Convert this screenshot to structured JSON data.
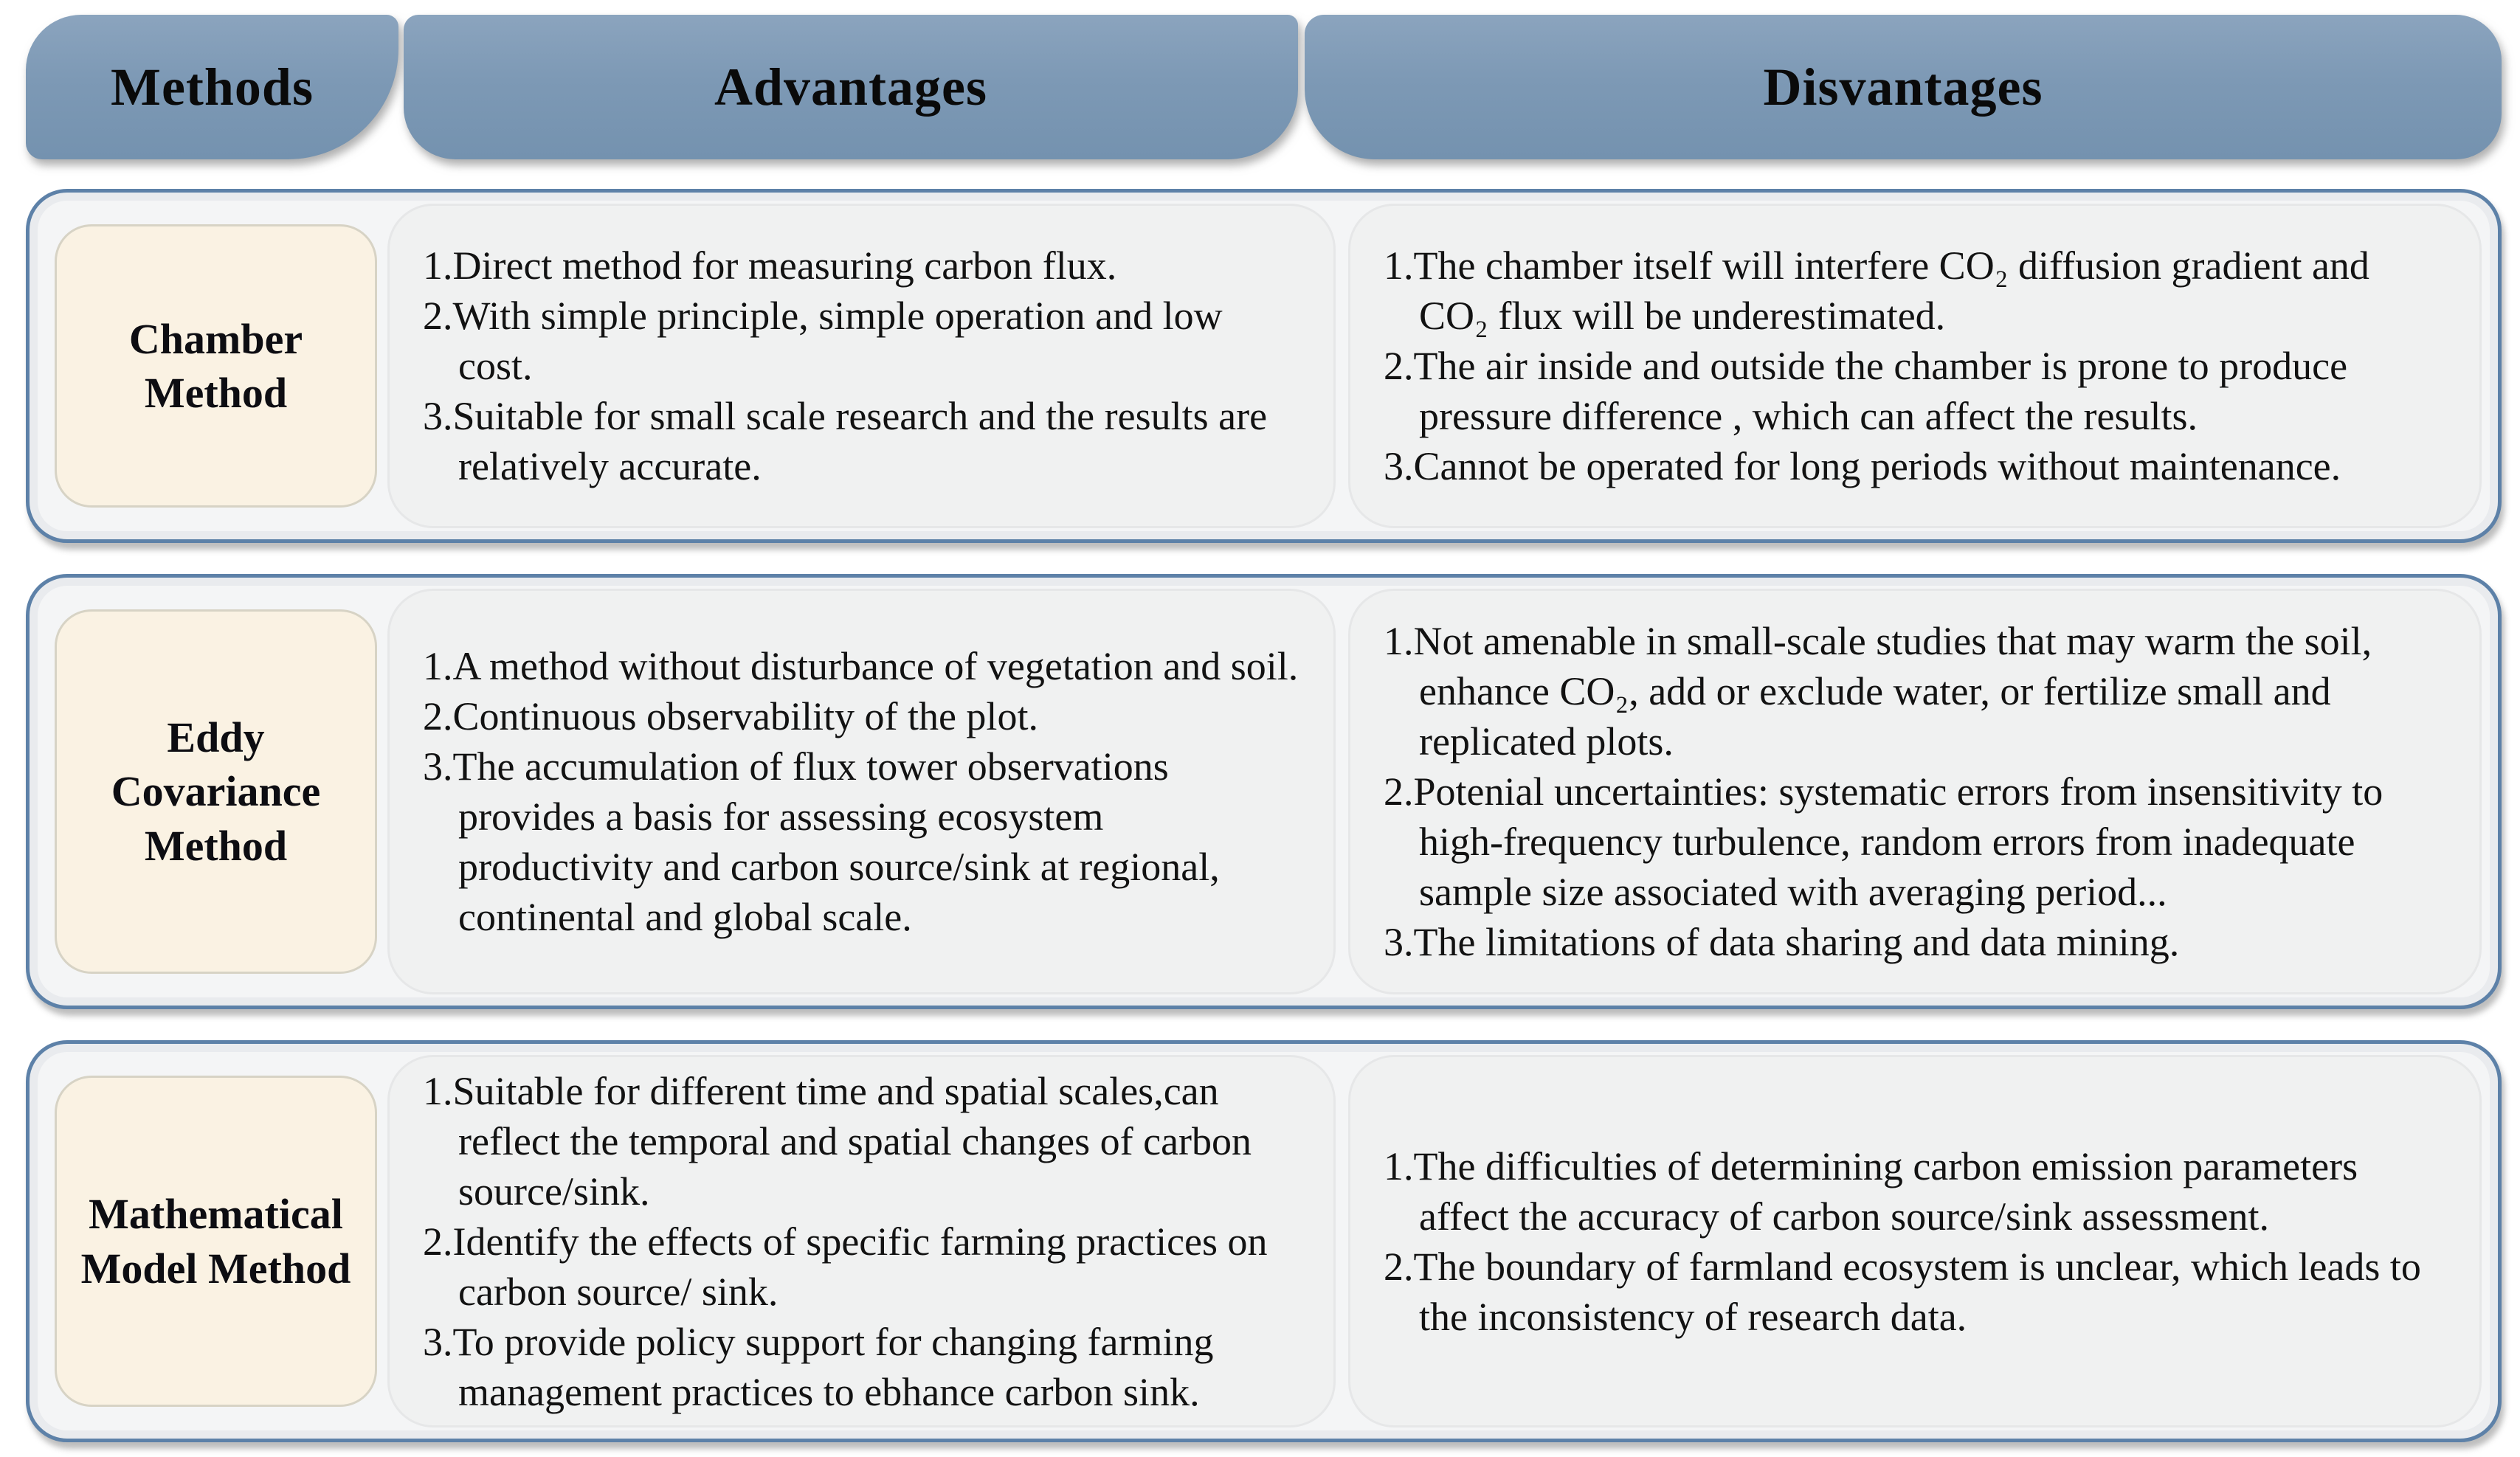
{
  "header": {
    "methods_label": "Methods",
    "advantages_label": "Advantages",
    "disadvantages_label": "Disvantages"
  },
  "rows": [
    {
      "method": "Chamber Method",
      "advantages": [
        "1.Direct method for measuring carbon flux.",
        "2.With simple principle, simple operation  and low cost.",
        "3.Suitable for small scale research and the results  are relatively accurate."
      ],
      "disadvantages": [
        "1.The chamber itself will interfere CO₂ diffusion gradient and CO₂ flux will be underestimated.",
        "2.The air inside and outside the chamber is prone to produce pressure difference , which can affect the results.",
        "3.Cannot be operated for long periods without maintenance."
      ]
    },
    {
      "method": "Eddy Covariance Method",
      "advantages": [
        "1.A method without disturbance of vegetation and soil.",
        "2.Continuous observability of the plot.",
        "3.The accumulation of flux tower observations provides a basis for assessing ecosystem productivity and carbon source/sink at regional, continental and global scale."
      ],
      "disadvantages": [
        "1.Not amenable in small-scale  studies that may warm the soil, enhance CO₂, add or exclude water, or fertilize small and replicated plots.",
        "2.Potenial uncertainties: systematic errors from insensitivity to high-frequency turbulence, random errors from inadequate sample size associated with averaging period...",
        "3.The limitations of data sharing and data mining."
      ]
    },
    {
      "method": "Mathematical Model Method",
      "advantages": [
        "1.Suitable for different time and spatial scales,can reflect the temporal and spatial changes of carbon source/sink.",
        "2.Identify the effects of specific farming practices on carbon source/ sink.",
        "3.To provide policy support for changing farming management practices to ebhance carbon sink."
      ],
      "disadvantages": [
        "1.The difficulties of determining carbon emission parameters affect the accuracy of carbon source/sink assessment.",
        "2.The boundary of farmland ecosystem is unclear, which leads to the inconsistency of research data."
      ]
    }
  ],
  "colors": {
    "header_blue": "#7d99b5",
    "row_border_blue": "#5d81a8",
    "method_cream": "#faf2e3",
    "panel_gray": "#f0f1f1"
  }
}
